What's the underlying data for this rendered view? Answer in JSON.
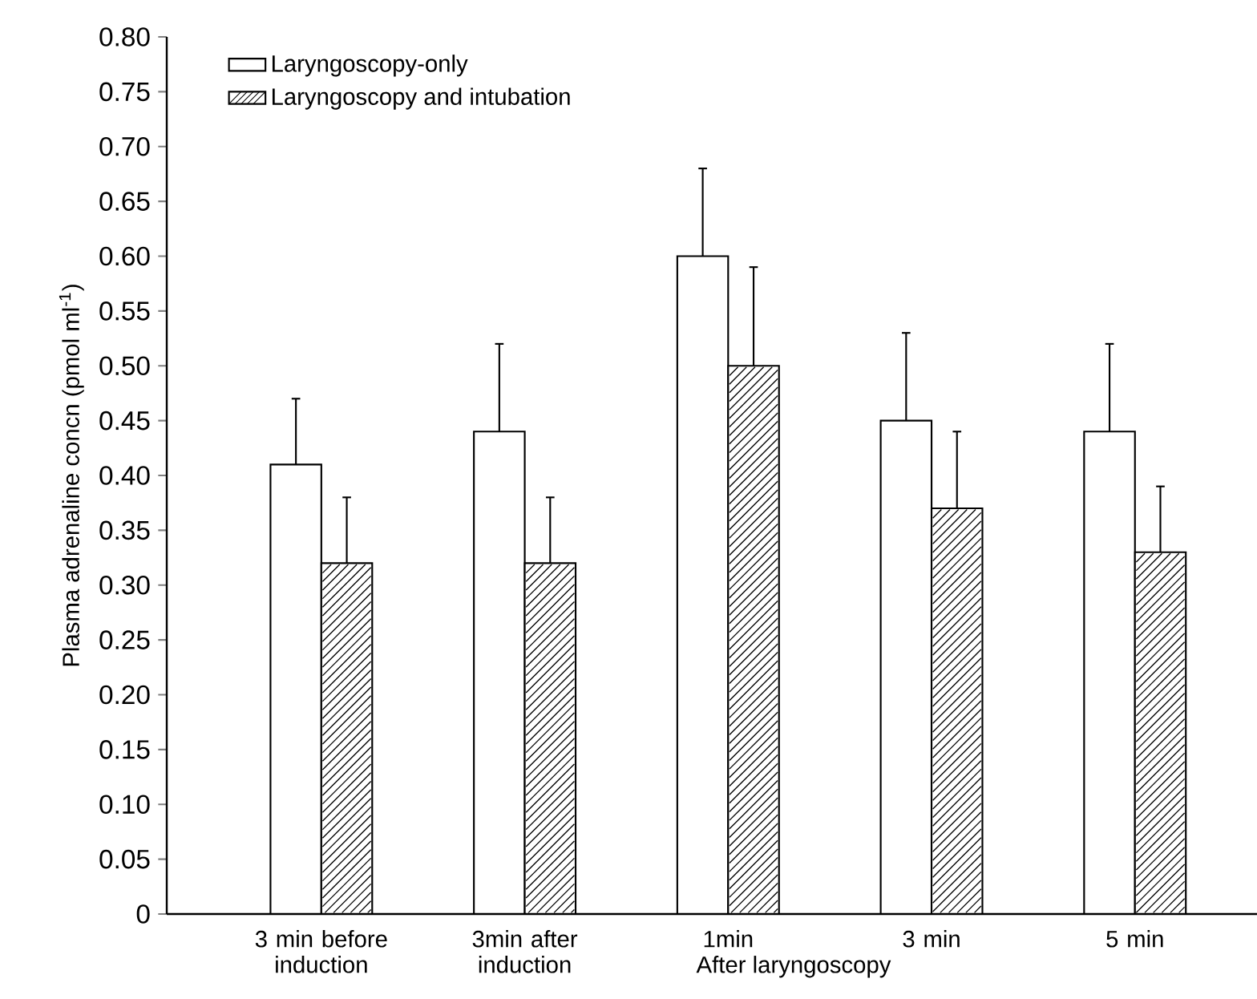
{
  "chart_data": {
    "type": "bar",
    "ylabel": "Plasma adrenaline concn (pmol ml$^{-1}$)",
    "categories": [
      "3 min before induction",
      "3min after induction",
      "1min",
      "3 min",
      "5 min"
    ],
    "series": [
      {
        "name": "Laryngoscopy-only",
        "color": "#ffffff",
        "values": [
          0.41,
          0.44,
          0.6,
          0.45,
          0.44
        ],
        "errors": [
          [
            0.41,
            0.47
          ],
          [
            0.44,
            0.52
          ],
          [
            0.6,
            0.68
          ],
          [
            0.45,
            0.53
          ],
          [
            0.44,
            0.52
          ]
        ]
      },
      {
        "name": "Laryngoscopy and intubation",
        "color": "#000000",
        "values": [
          0.32,
          0.32,
          0.5,
          0.37,
          0.33
        ],
        "errors": [
          [
            0.32,
            0.38
          ],
          [
            0.32,
            0.38
          ],
          [
            0.5,
            0.59
          ],
          [
            0.37,
            0.44
          ],
          [
            0.33,
            0.39
          ]
        ]
      }
    ],
    "ylim": [
      0,
      0.8
    ],
    "yticks": [
      {
        "value": 0,
        "label": "0"
      },
      {
        "value": 0.05,
        "label": "0.05"
      },
      {
        "value": 0.1,
        "label": "0.10"
      },
      {
        "value": 0.15,
        "label": "0.15"
      },
      {
        "value": 0.2,
        "label": "0.20"
      },
      {
        "value": 0.25,
        "label": "0.25"
      },
      {
        "value": 0.3,
        "label": "0.30"
      },
      {
        "value": 0.35,
        "label": "0.35"
      },
      {
        "value": 0.4,
        "label": "0.40"
      },
      {
        "value": 0.45,
        "label": "0.45"
      },
      {
        "value": 0.5,
        "label": "0.50"
      },
      {
        "value": 0.55,
        "label": "0.55"
      },
      {
        "value": 0.6,
        "label": "0.60"
      },
      {
        "value": 0.65,
        "label": "0.65"
      },
      {
        "value": 0.7,
        "label": "0.70"
      },
      {
        "value": 0.75,
        "label": "0.75"
      },
      {
        "value": 0.8,
        "label": "0.80"
      }
    ],
    "legend": "top left",
    "grid": false,
    "annotations": [
      "After laryngoscopy"
    ]
  }
}
